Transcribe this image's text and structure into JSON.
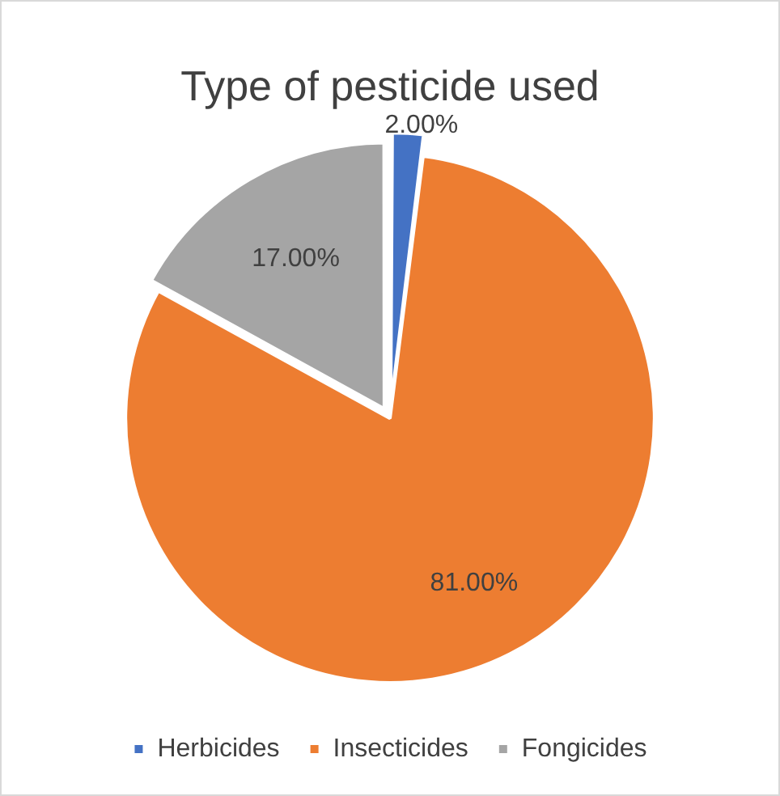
{
  "chart_data": {
    "type": "pie",
    "title": "Type of pesticide used",
    "categories": [
      "Herbicides",
      "Insecticides",
      "Fongicides"
    ],
    "values": [
      2,
      81,
      17
    ],
    "colors": [
      "#4472c4",
      "#ed7d31",
      "#a5a5a5"
    ],
    "value_labels": [
      "2.00%",
      "81.00%",
      "17.00%"
    ],
    "legend": "bottom"
  }
}
